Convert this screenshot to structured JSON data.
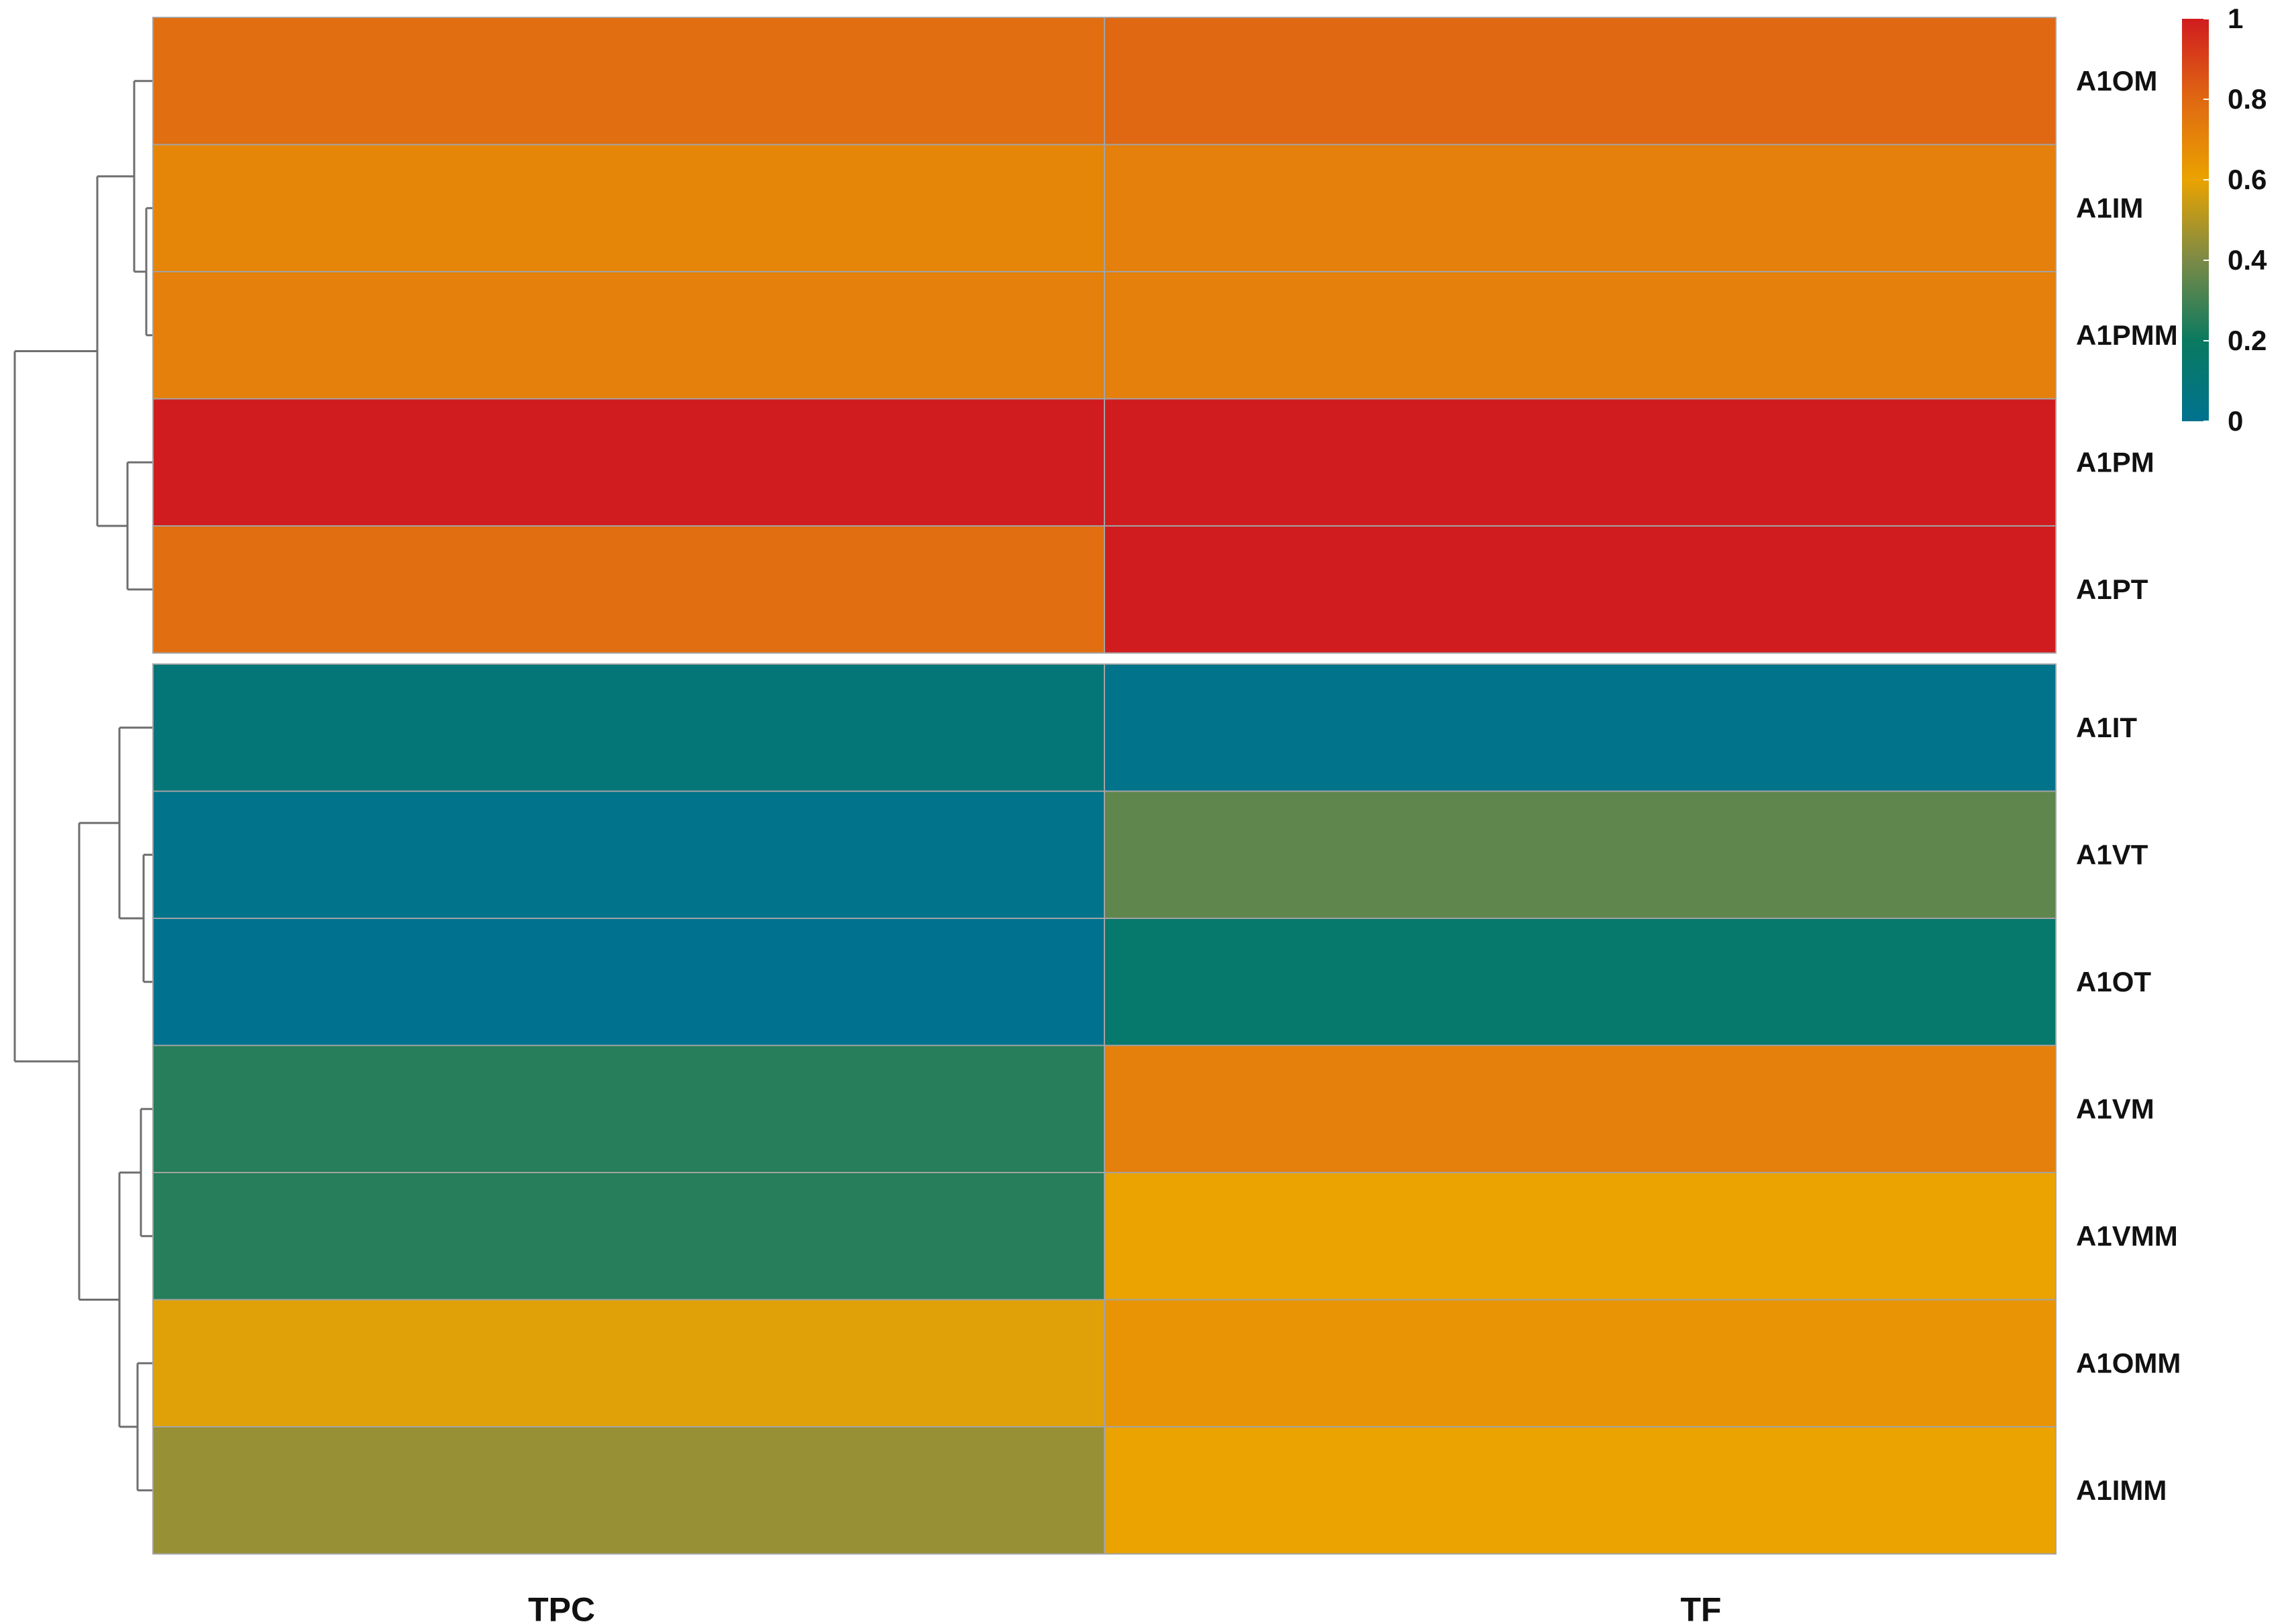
{
  "chart_data": {
    "type": "heatmap",
    "title": "",
    "xlabel": "",
    "ylabel": "",
    "columns": [
      "TPC",
      "TF"
    ],
    "rows": [
      "A1OM",
      "A1IM",
      "A1PMM",
      "A1PM",
      "A1PT",
      "A1IT",
      "A1VT",
      "A1OT",
      "A1VM",
      "A1VMM",
      "A1OMM",
      "A1IMM"
    ],
    "values": [
      [
        0.78,
        0.8
      ],
      [
        0.7,
        0.72
      ],
      [
        0.72,
        0.72
      ],
      [
        1.0,
        1.0
      ],
      [
        0.78,
        1.0
      ],
      [
        0.1,
        0.02
      ],
      [
        0.02,
        0.35
      ],
      [
        0.0,
        0.15
      ],
      [
        0.25,
        0.72
      ],
      [
        0.25,
        0.6
      ],
      [
        0.58,
        0.65
      ],
      [
        0.45,
        0.6
      ]
    ],
    "row_groups": [
      [
        0,
        4
      ],
      [
        5,
        11
      ]
    ],
    "row_dendrogram": "left",
    "colorscale": {
      "min": 0,
      "max": 1,
      "stops": [
        {
          "value": 0.0,
          "color": "#00728f"
        },
        {
          "value": 0.2,
          "color": "#0a7a60"
        },
        {
          "value": 0.4,
          "color": "#7b8a46"
        },
        {
          "value": 0.6,
          "color": "#eaa300"
        },
        {
          "value": 0.8,
          "color": "#e06812"
        },
        {
          "value": 1.0,
          "color": "#d01c1f"
        }
      ]
    },
    "legend": {
      "placement": "top-right",
      "ticks": [
        "1",
        "0.8",
        "0.6",
        "0.4",
        "0.2",
        "0"
      ],
      "tick_values": [
        1,
        0.8,
        0.6,
        0.4,
        0.2,
        0
      ]
    },
    "grid": true
  }
}
